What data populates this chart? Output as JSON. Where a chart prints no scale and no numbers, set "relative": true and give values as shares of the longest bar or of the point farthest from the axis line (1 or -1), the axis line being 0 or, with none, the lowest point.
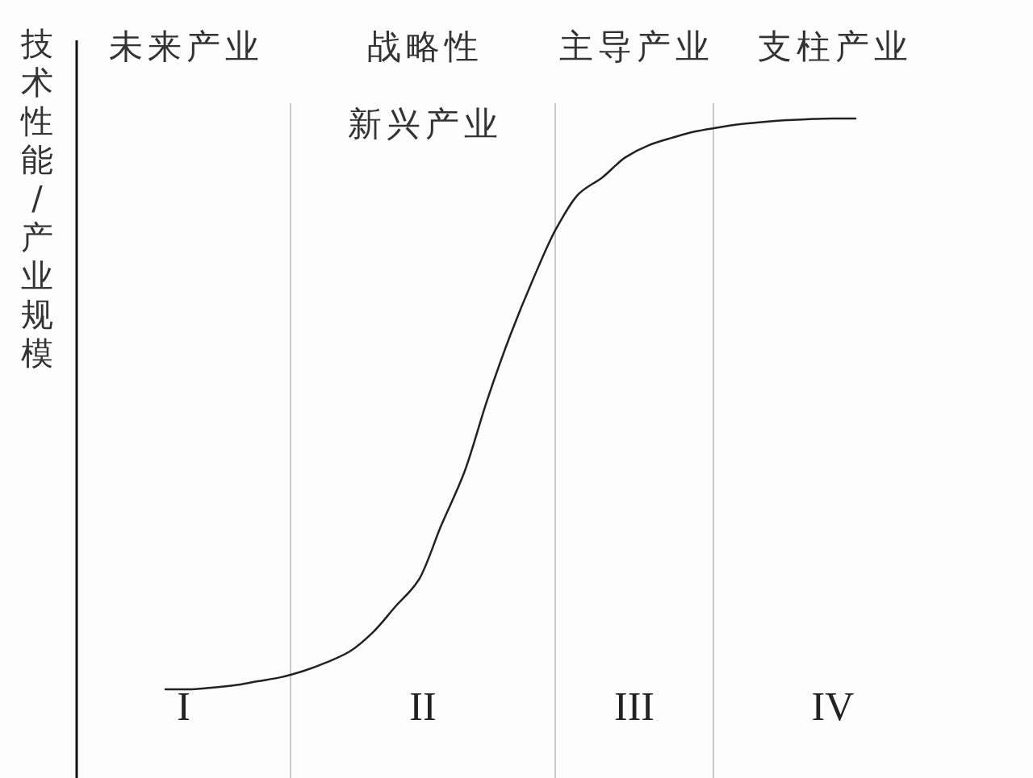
{
  "chart_data": {
    "type": "line",
    "relative": true,
    "color": "#222222",
    "ylabel": "技术性能/产业规模",
    "categories": [
      null,
      null,
      null,
      null,
      null,
      null,
      null,
      null,
      null,
      null,
      null,
      null,
      null,
      null,
      null,
      null,
      null,
      null,
      null,
      null,
      null,
      null,
      null,
      null,
      null,
      null,
      null,
      null,
      null,
      null,
      null
    ],
    "values": [
      0,
      0,
      0.003,
      0.007,
      0.014,
      0.021,
      0.032,
      0.047,
      0.066,
      0.099,
      0.145,
      0.191,
      0.288,
      0.381,
      0.508,
      0.621,
      0.72,
      0.808,
      0.869,
      0.897,
      0.932,
      0.953,
      0.966,
      0.977,
      0.984,
      0.99,
      0.994,
      0.997,
      0.999,
      1,
      1
    ],
    "annotations": [
      "未来产业",
      "战略性新兴产业",
      "主导产业",
      "支柱产业",
      "I",
      "II",
      "III",
      "IV"
    ]
  }
}
